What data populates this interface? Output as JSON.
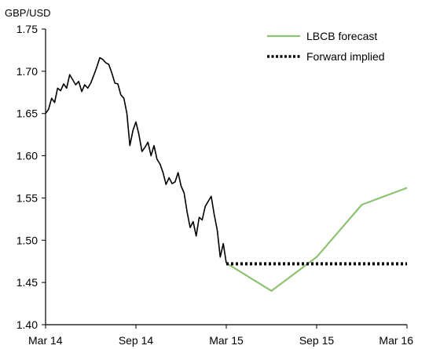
{
  "chart_data": {
    "type": "line",
    "unit_label": "GBP/USD",
    "xlabel": "",
    "ylabel": "",
    "xlim": [
      0,
      24
    ],
    "ylim": [
      1.4,
      1.75
    ],
    "y_ticks": [
      1.4,
      1.45,
      1.5,
      1.55,
      1.6,
      1.65,
      1.7,
      1.75
    ],
    "y_tick_labels": [
      "1.40",
      "1.45",
      "1.50",
      "1.55",
      "1.60",
      "1.65",
      "1.70",
      "1.75"
    ],
    "x_ticks": [
      0,
      6,
      12,
      18,
      24
    ],
    "x_tick_labels": [
      "Mar 14",
      "Sep 14",
      "Mar 15",
      "Sep 15",
      "Mar 16"
    ],
    "grid": false,
    "legend_position": "top-right",
    "series": [
      {
        "name": "",
        "style": "solid",
        "color": "#000000",
        "x": [
          0.0,
          0.2,
          0.4,
          0.6,
          0.8,
          1.0,
          1.2,
          1.4,
          1.6,
          1.8,
          2.0,
          2.2,
          2.4,
          2.6,
          2.8,
          3.0,
          3.2,
          3.4,
          3.6,
          3.8,
          4.0,
          4.2,
          4.4,
          4.6,
          4.8,
          5.0,
          5.2,
          5.4,
          5.6,
          5.8,
          6.0,
          6.2,
          6.4,
          6.6,
          6.8,
          7.0,
          7.2,
          7.4,
          7.6,
          7.8,
          8.0,
          8.2,
          8.4,
          8.6,
          8.8,
          9.0,
          9.2,
          9.4,
          9.6,
          9.8,
          10.0,
          10.2,
          10.4,
          10.6,
          10.8,
          11.0,
          11.2,
          11.4,
          11.6,
          11.8,
          12.0
        ],
        "y": [
          1.65,
          1.655,
          1.668,
          1.663,
          1.68,
          1.677,
          1.685,
          1.68,
          1.696,
          1.69,
          1.684,
          1.688,
          1.676,
          1.684,
          1.68,
          1.686,
          1.695,
          1.705,
          1.716,
          1.714,
          1.71,
          1.708,
          1.698,
          1.686,
          1.685,
          1.672,
          1.668,
          1.65,
          1.612,
          1.63,
          1.64,
          1.625,
          1.605,
          1.61,
          1.616,
          1.6,
          1.612,
          1.596,
          1.59,
          1.58,
          1.566,
          1.574,
          1.567,
          1.569,
          1.58,
          1.564,
          1.556,
          1.533,
          1.515,
          1.522,
          1.505,
          1.527,
          1.524,
          1.54,
          1.546,
          1.552,
          1.53,
          1.512,
          1.48,
          1.496,
          1.473
        ]
      },
      {
        "name": "LBCB forecast",
        "style": "solid",
        "color": "#8cc271",
        "x": [
          12,
          15,
          18,
          21,
          24
        ],
        "y": [
          1.473,
          1.44,
          1.48,
          1.542,
          1.562
        ]
      },
      {
        "name": "Forward implied",
        "style": "dotted",
        "color": "#000000",
        "x": [
          12,
          24
        ],
        "y": [
          1.472,
          1.472
        ]
      }
    ],
    "legend": [
      {
        "label": "LBCB forecast",
        "style": "solid",
        "color": "#8cc271"
      },
      {
        "label": "Forward implied",
        "style": "dotted",
        "color": "#000000"
      }
    ]
  }
}
